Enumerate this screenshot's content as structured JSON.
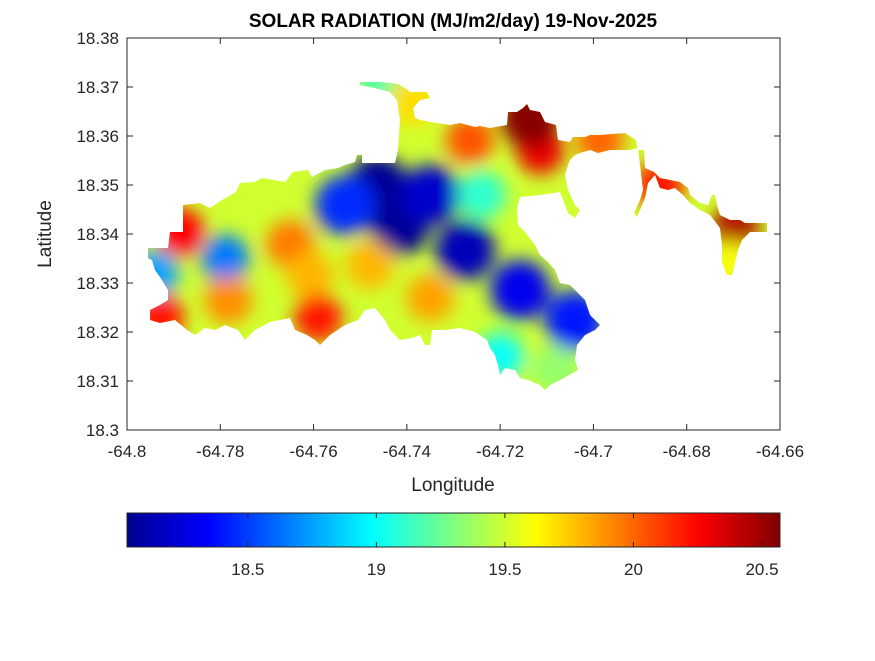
{
  "chart_data": {
    "type": "heatmap",
    "subtype": "filled-contour-map",
    "title": "SOLAR RADIATION (MJ/m2/day) 19-Nov-2025",
    "xlabel": "Longitude",
    "ylabel": "Latitude",
    "xlim": [
      -64.8,
      -64.66
    ],
    "ylim": [
      18.3,
      18.38
    ],
    "xticks": [
      -64.8,
      -64.78,
      -64.76,
      -64.74,
      -64.72,
      -64.7,
      -64.68,
      -64.66
    ],
    "xtick_labels": [
      "-64.8",
      "-64.78",
      "-64.76",
      "-64.74",
      "-64.72",
      "-64.7",
      "-64.68",
      "-64.66"
    ],
    "yticks": [
      18.3,
      18.31,
      18.32,
      18.33,
      18.34,
      18.35,
      18.36,
      18.37,
      18.38
    ],
    "ytick_labels": [
      "18.3",
      "18.31",
      "18.32",
      "18.33",
      "18.34",
      "18.35",
      "18.36",
      "18.37",
      "18.38"
    ],
    "grid": false,
    "colormap": "jet",
    "colorbar": {
      "location": "bottom",
      "clim": [
        18.03,
        20.57
      ],
      "ticks": [
        18.5,
        19,
        19.5,
        20,
        20.5
      ],
      "tick_labels": [
        "18.5",
        "19",
        "19.5",
        "20",
        "20.5"
      ]
    },
    "base_value": 19.5,
    "approx_field_points": [
      {
        "lon": -64.7462,
        "lat": 18.35,
        "value": 18.05
      },
      {
        "lon": -64.7415,
        "lat": 18.3418,
        "value": 18.05
      },
      {
        "lon": -64.7275,
        "lat": 18.3367,
        "value": 18.15
      },
      {
        "lon": -64.7157,
        "lat": 18.3286,
        "value": 18.3
      },
      {
        "lon": -64.704,
        "lat": 18.3224,
        "value": 18.4
      },
      {
        "lon": -64.7533,
        "lat": 18.3459,
        "value": 18.45
      },
      {
        "lon": -64.735,
        "lat": 18.348,
        "value": 18.2
      },
      {
        "lon": -64.779,
        "lat": 18.335,
        "value": 18.65
      },
      {
        "lon": -64.794,
        "lat": 18.332,
        "value": 18.75
      },
      {
        "lon": -64.7886,
        "lat": 18.3404,
        "value": 20.25
      },
      {
        "lon": -64.765,
        "lat": 18.338,
        "value": 19.95
      },
      {
        "lon": -64.7608,
        "lat": 18.3316,
        "value": 19.8
      },
      {
        "lon": -64.759,
        "lat": 18.3229,
        "value": 20.2
      },
      {
        "lon": -64.7783,
        "lat": 18.3265,
        "value": 19.9
      },
      {
        "lon": -64.7479,
        "lat": 18.3337,
        "value": 19.8
      },
      {
        "lon": -64.735,
        "lat": 18.327,
        "value": 19.85
      },
      {
        "lon": -64.7929,
        "lat": 18.3229,
        "value": 20.2
      },
      {
        "lon": -64.7265,
        "lat": 18.3592,
        "value": 20.05
      },
      {
        "lon": -64.7114,
        "lat": 18.3571,
        "value": 20.3
      },
      {
        "lon": -64.7136,
        "lat": 18.3637,
        "value": 20.55
      },
      {
        "lon": -64.6986,
        "lat": 18.3592,
        "value": 20.0
      },
      {
        "lon": -64.6857,
        "lat": 18.35,
        "value": 20.2
      },
      {
        "lon": -64.6696,
        "lat": 18.3408,
        "value": 20.45
      },
      {
        "lon": -64.6707,
        "lat": 18.3337,
        "value": 19.6
      },
      {
        "lon": -64.7458,
        "lat": 18.3698,
        "value": 19.2
      },
      {
        "lon": -64.739,
        "lat": 18.367,
        "value": 19.7
      },
      {
        "lon": -64.7082,
        "lat": 18.3122,
        "value": 19.35
      },
      {
        "lon": -64.72,
        "lat": 18.315,
        "value": 19.0
      },
      {
        "lon": -64.724,
        "lat": 18.348,
        "value": 19.1
      }
    ]
  }
}
